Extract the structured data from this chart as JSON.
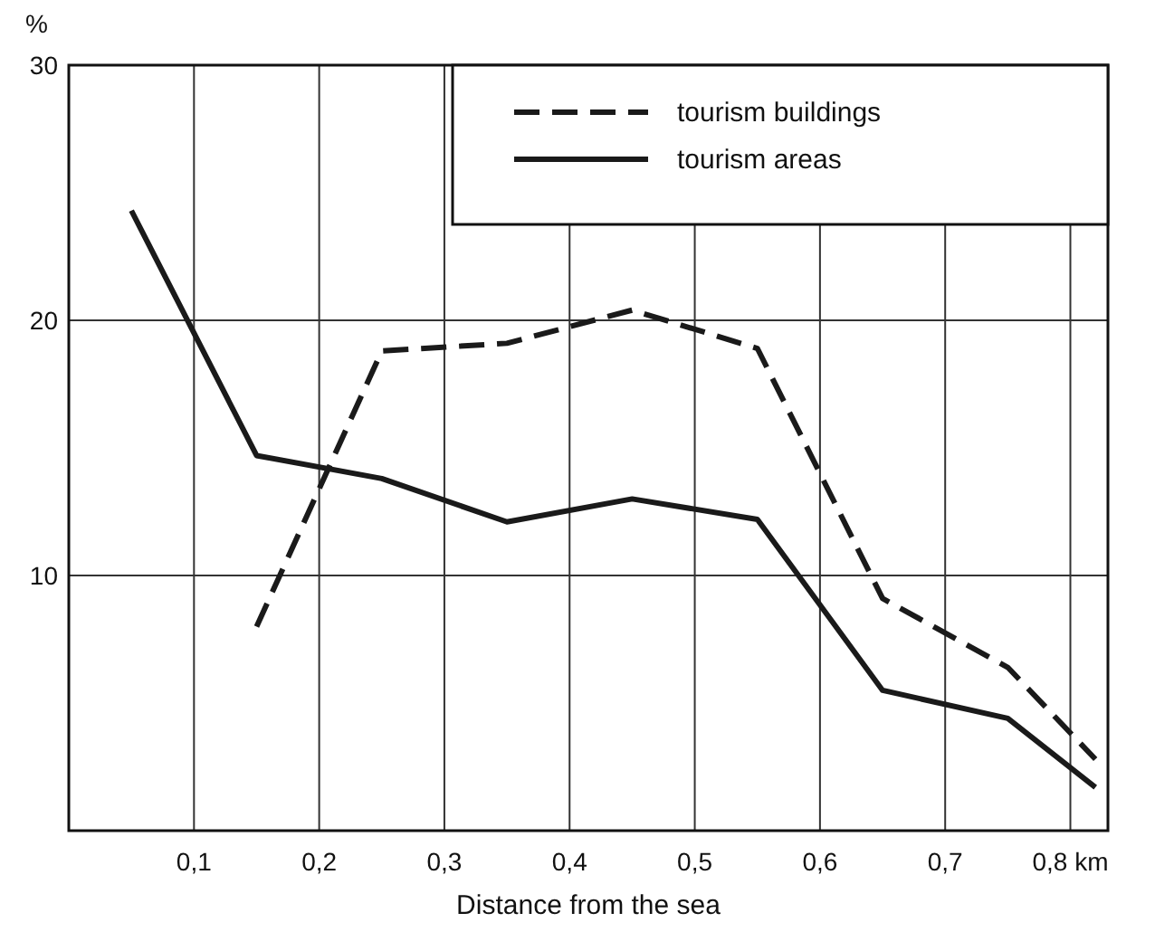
{
  "chart_data": {
    "type": "line",
    "xlabel": "Distance from the sea",
    "ylabel": "%",
    "xlim": [
      0,
      0.83
    ],
    "ylim": [
      0,
      30
    ],
    "xticks": [
      {
        "value": 0.1,
        "label": "0,1"
      },
      {
        "value": 0.2,
        "label": "0,2"
      },
      {
        "value": 0.3,
        "label": "0,3"
      },
      {
        "value": 0.4,
        "label": "0,4"
      },
      {
        "value": 0.5,
        "label": "0,5"
      },
      {
        "value": 0.6,
        "label": "0,6"
      },
      {
        "value": 0.7,
        "label": "0,7"
      },
      {
        "value": 0.8,
        "label": "0,8 km"
      }
    ],
    "yticks": [
      10,
      20,
      30
    ],
    "grid": true,
    "legend": "top right",
    "marker": "none",
    "series": [
      {
        "name": "tourism buildings",
        "color": "#1a1a1a",
        "line_style": "dashed",
        "x": [
          0.15,
          0.25,
          0.35,
          0.45,
          0.55,
          0.65,
          0.75,
          0.82
        ],
        "values": [
          8.0,
          18.8,
          19.1,
          20.4,
          18.9,
          9.1,
          6.4,
          2.8
        ]
      },
      {
        "name": "tourism areas",
        "color": "#1a1a1a",
        "line_style": "solid",
        "x": [
          0.05,
          0.15,
          0.25,
          0.35,
          0.45,
          0.55,
          0.65,
          0.75,
          0.82
        ],
        "values": [
          24.3,
          14.7,
          13.8,
          12.1,
          13.0,
          12.2,
          5.5,
          4.4,
          1.7
        ]
      }
    ]
  }
}
